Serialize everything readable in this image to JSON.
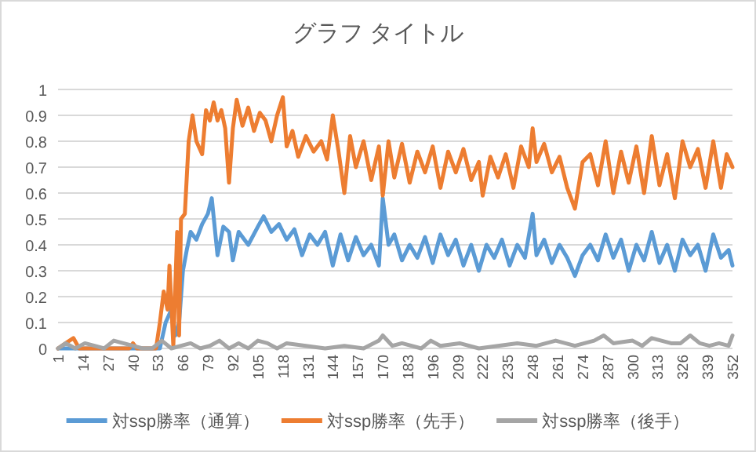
{
  "chart_data": {
    "type": "line",
    "title": "グラフ タイトル",
    "xlim": [
      1,
      352
    ],
    "xticks": [
      1,
      14,
      27,
      40,
      53,
      66,
      79,
      92,
      105,
      118,
      131,
      144,
      157,
      170,
      183,
      196,
      209,
      222,
      235,
      248,
      261,
      274,
      287,
      300,
      313,
      326,
      339,
      352
    ],
    "ylim": [
      0,
      1
    ],
    "yticks": [
      0,
      0.1,
      0.2,
      0.3,
      0.4,
      0.5,
      0.6,
      0.7,
      0.8,
      0.9,
      1
    ],
    "grid": "y",
    "legend": "bottom",
    "series": [
      {
        "name": "対ssp勝率（通算）",
        "color": "#5b9bd5",
        "x": [
          1,
          50,
          54,
          57,
          60,
          62,
          64,
          66,
          68,
          70,
          73,
          76,
          79,
          81,
          84,
          87,
          90,
          92,
          95,
          100,
          105,
          108,
          112,
          116,
          120,
          124,
          128,
          132,
          136,
          140,
          144,
          148,
          152,
          156,
          160,
          164,
          168,
          170,
          173,
          176,
          180,
          184,
          188,
          192,
          196,
          200,
          204,
          208,
          212,
          216,
          220,
          224,
          228,
          232,
          236,
          240,
          244,
          248,
          250,
          254,
          258,
          262,
          266,
          270,
          274,
          278,
          282,
          286,
          290,
          294,
          298,
          302,
          306,
          310,
          314,
          318,
          322,
          326,
          330,
          334,
          338,
          342,
          346,
          350,
          352
        ],
        "values": [
          0,
          0,
          0,
          0.1,
          0.15,
          0.05,
          0.1,
          0.3,
          0.38,
          0.45,
          0.42,
          0.48,
          0.52,
          0.58,
          0.36,
          0.47,
          0.45,
          0.34,
          0.45,
          0.4,
          0.47,
          0.51,
          0.45,
          0.48,
          0.42,
          0.46,
          0.36,
          0.44,
          0.4,
          0.45,
          0.32,
          0.44,
          0.34,
          0.43,
          0.36,
          0.4,
          0.32,
          0.58,
          0.4,
          0.44,
          0.34,
          0.4,
          0.35,
          0.43,
          0.33,
          0.44,
          0.36,
          0.42,
          0.32,
          0.4,
          0.3,
          0.4,
          0.35,
          0.42,
          0.32,
          0.4,
          0.35,
          0.52,
          0.36,
          0.42,
          0.33,
          0.4,
          0.35,
          0.28,
          0.36,
          0.4,
          0.34,
          0.44,
          0.35,
          0.42,
          0.3,
          0.4,
          0.34,
          0.45,
          0.33,
          0.4,
          0.3,
          0.42,
          0.36,
          0.4,
          0.3,
          0.44,
          0.35,
          0.38,
          0.32
        ]
      },
      {
        "name": "対ssp勝率（先手）",
        "color": "#ed7d31",
        "x": [
          1,
          5,
          9,
          12,
          38,
          40,
          42,
          52,
          54,
          56,
          58,
          59,
          61,
          63,
          64,
          65,
          67,
          69,
          71,
          73,
          76,
          78,
          80,
          82,
          84,
          86,
          88,
          90,
          92,
          94,
          97,
          100,
          103,
          106,
          109,
          112,
          115,
          118,
          120,
          123,
          126,
          130,
          134,
          138,
          141,
          144,
          147,
          150,
          153,
          156,
          160,
          164,
          168,
          170,
          173,
          176,
          180,
          184,
          188,
          192,
          196,
          200,
          204,
          208,
          212,
          216,
          220,
          222,
          226,
          230,
          234,
          238,
          242,
          246,
          248,
          250,
          254,
          258,
          262,
          266,
          270,
          274,
          278,
          282,
          286,
          290,
          294,
          298,
          302,
          306,
          310,
          314,
          318,
          322,
          326,
          330,
          334,
          338,
          342,
          346,
          349,
          352
        ],
        "values": [
          0,
          0.02,
          0.04,
          0,
          0,
          0.02,
          0,
          0,
          0.1,
          0.22,
          0.15,
          0.32,
          0.01,
          0.45,
          0.05,
          0.5,
          0.52,
          0.8,
          0.9,
          0.8,
          0.75,
          0.92,
          0.88,
          0.95,
          0.88,
          0.92,
          0.85,
          0.64,
          0.85,
          0.96,
          0.86,
          0.93,
          0.84,
          0.91,
          0.88,
          0.8,
          0.9,
          0.97,
          0.78,
          0.84,
          0.74,
          0.82,
          0.76,
          0.8,
          0.73,
          0.9,
          0.76,
          0.6,
          0.82,
          0.7,
          0.8,
          0.65,
          0.78,
          0.59,
          0.8,
          0.66,
          0.79,
          0.64,
          0.76,
          0.68,
          0.78,
          0.62,
          0.76,
          0.68,
          0.77,
          0.65,
          0.72,
          0.59,
          0.74,
          0.66,
          0.75,
          0.62,
          0.78,
          0.7,
          0.85,
          0.72,
          0.79,
          0.68,
          0.74,
          0.62,
          0.54,
          0.72,
          0.75,
          0.63,
          0.8,
          0.6,
          0.76,
          0.64,
          0.78,
          0.6,
          0.82,
          0.63,
          0.75,
          0.58,
          0.8,
          0.7,
          0.77,
          0.62,
          0.8,
          0.62,
          0.75,
          0.7
        ]
      },
      {
        "name": "対ssp勝率（後手）",
        "color": "#a5a5a5",
        "x": [
          1,
          5,
          10,
          15,
          20,
          25,
          30,
          35,
          40,
          45,
          50,
          55,
          60,
          65,
          70,
          75,
          80,
          85,
          90,
          95,
          100,
          105,
          110,
          115,
          120,
          130,
          140,
          150,
          160,
          168,
          170,
          175,
          180,
          190,
          195,
          200,
          210,
          220,
          230,
          240,
          250,
          255,
          260,
          270,
          280,
          285,
          290,
          300,
          305,
          310,
          320,
          325,
          330,
          335,
          340,
          345,
          350,
          352
        ],
        "values": [
          0,
          0.02,
          0,
          0.02,
          0.01,
          0,
          0.03,
          0.02,
          0.01,
          0,
          0,
          0.03,
          0,
          0.01,
          0.02,
          0,
          0.01,
          0.03,
          0,
          0.02,
          0,
          0.03,
          0.02,
          0,
          0.02,
          0.01,
          0,
          0.01,
          0,
          0.03,
          0.05,
          0.01,
          0.02,
          0,
          0.03,
          0.01,
          0.02,
          0,
          0.01,
          0.02,
          0.01,
          0.02,
          0.03,
          0.01,
          0.03,
          0.05,
          0.02,
          0.03,
          0.01,
          0.04,
          0.02,
          0.02,
          0.05,
          0.02,
          0.01,
          0.02,
          0.01,
          0.05
        ]
      }
    ]
  }
}
